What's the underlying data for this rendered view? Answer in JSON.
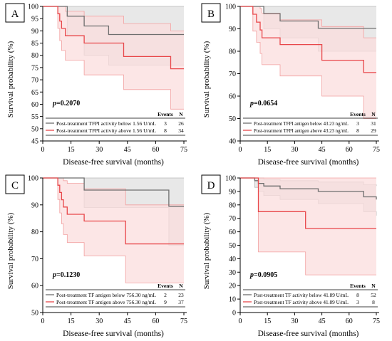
{
  "colors": {
    "grey_line": "#6e6e6e",
    "grey_band": "#e6e6e6",
    "red_line": "#e8474a",
    "red_band": "#fbdedd",
    "red_band_edge": "#f2a0a0",
    "grey_band_edge": "#b8b8b8"
  },
  "chart_data": [
    {
      "panel_letter": "A",
      "type": "line",
      "xlabel": "Disease-free survival (months)",
      "ylabel": "Survival probability (%)",
      "xlim": [
        0,
        75
      ],
      "ylim": [
        45,
        100
      ],
      "xticks": [
        0,
        15,
        30,
        45,
        60,
        75
      ],
      "yticks": [
        45,
        50,
        55,
        60,
        65,
        70,
        75,
        80,
        85,
        90,
        95,
        100
      ],
      "pvalue": "p=0.2070",
      "legend": {
        "headers": [
          "Events",
          "N"
        ],
        "rows": [
          {
            "label": "Post-treatment TFPI activity below 1.56 U/mL",
            "events": "3",
            "n": "26"
          },
          {
            "label": "Post-treatment TFPI activity above 1.56 U/mL",
            "events": "8",
            "n": "34"
          }
        ]
      },
      "series": [
        {
          "color_key": "grey",
          "x": [
            0,
            13,
            22,
            35,
            75
          ],
          "y": [
            100,
            96,
            92,
            88.5,
            88.5
          ],
          "ci_low": [
            100,
            88,
            80,
            76,
            76
          ],
          "ci_high": [
            100,
            100,
            100,
            100,
            100
          ]
        },
        {
          "color_key": "red",
          "x": [
            0,
            8,
            9,
            10,
            12,
            22,
            43,
            68,
            75
          ],
          "y": [
            100,
            97,
            94,
            91,
            88,
            85,
            79.5,
            74.5,
            74.5
          ],
          "ci_low": [
            100,
            91,
            86,
            82,
            78,
            72,
            66,
            58,
            58
          ],
          "ci_high": [
            100,
            100,
            100,
            100,
            98,
            96,
            93,
            90,
            90
          ]
        }
      ]
    },
    {
      "panel_letter": "B",
      "type": "line",
      "xlabel": "Disease-free survival (months)",
      "ylabel": "Survival probability (%)",
      "xlim": [
        0,
        75
      ],
      "ylim": [
        40,
        100
      ],
      "xticks": [
        0,
        15,
        30,
        45,
        60,
        75
      ],
      "yticks": [
        40,
        50,
        60,
        70,
        80,
        90,
        100
      ],
      "pvalue": "p=0.0654",
      "legend": {
        "headers": [
          "Events",
          "N"
        ],
        "rows": [
          {
            "label": "Post-treatment TFPI antigen below 43.23 ng/mL",
            "events": "3",
            "n": "31"
          },
          {
            "label": "Post-treatment TFPI antigen above 43.23 ng/mL",
            "events": "8",
            "n": "29"
          }
        ]
      },
      "series": [
        {
          "color_key": "grey",
          "x": [
            0,
            13,
            22,
            43,
            75
          ],
          "y": [
            100,
            96.8,
            93.5,
            90.3,
            90.3
          ],
          "ci_low": [
            100,
            90,
            86,
            80,
            80
          ],
          "ci_high": [
            100,
            100,
            100,
            100,
            100
          ]
        },
        {
          "color_key": "red",
          "x": [
            0,
            7,
            9,
            11,
            12,
            22,
            45,
            68,
            75
          ],
          "y": [
            100,
            96.5,
            93,
            89.5,
            86,
            83,
            76,
            70.5,
            70.5
          ],
          "ci_low": [
            100,
            89,
            84,
            79,
            74,
            69,
            60,
            50,
            50
          ],
          "ci_high": [
            100,
            100,
            100,
            99,
            97,
            94,
            91,
            86,
            86
          ]
        }
      ]
    },
    {
      "panel_letter": "C",
      "type": "line",
      "xlabel": "Disease-free survival (months)",
      "ylabel": "Survival probability (%)",
      "xlim": [
        0,
        75
      ],
      "ylim": [
        50,
        100
      ],
      "xticks": [
        0,
        15,
        30,
        45,
        60,
        75
      ],
      "yticks": [
        50,
        60,
        70,
        80,
        90,
        100
      ],
      "pvalue": "p=0.1230",
      "legend": {
        "headers": [
          "Events",
          "N"
        ],
        "rows": [
          {
            "label": "Post-treatment TF antigen below 756.30 ng/mL",
            "events": "2",
            "n": "23"
          },
          {
            "label": "Post-treatment TF antigen above 756.30 ng/mL",
            "events": "9",
            "n": "37"
          }
        ]
      },
      "series": [
        {
          "color_key": "grey",
          "x": [
            0,
            22,
            67,
            75
          ],
          "y": [
            100,
            95.5,
            89.5,
            89.5
          ],
          "ci_low": [
            100,
            89,
            75,
            75
          ],
          "ci_high": [
            100,
            100,
            100,
            100
          ]
        },
        {
          "color_key": "red",
          "x": [
            0,
            8,
            9,
            10,
            11,
            13,
            22,
            44,
            75
          ],
          "y": [
            100,
            97.3,
            94.6,
            91.9,
            89.2,
            86.5,
            84,
            75.5,
            75.5
          ],
          "ci_low": [
            100,
            92,
            87,
            83,
            79,
            76,
            71,
            61,
            61
          ],
          "ci_high": [
            100,
            100,
            100,
            100,
            99,
            98,
            96,
            90,
            90
          ]
        }
      ]
    },
    {
      "panel_letter": "D",
      "type": "line",
      "xlabel": "Disease-free survival (months)",
      "ylabel": "Survival probability (%)",
      "xlim": [
        0,
        75
      ],
      "ylim": [
        0,
        100
      ],
      "xticks": [
        0,
        15,
        30,
        45,
        60,
        75
      ],
      "yticks": [
        0,
        10,
        20,
        30,
        40,
        50,
        60,
        70,
        80,
        90,
        100
      ],
      "pvalue": "p=0.0905",
      "legend": {
        "headers": [
          "Events",
          "N"
        ],
        "rows": [
          {
            "label": "Post-treatment TF activity below 41.89 U/mL",
            "events": "8",
            "n": "52"
          },
          {
            "label": "Post-treatment TF activity above 41.89 U/mL",
            "events": "3",
            "n": "8"
          }
        ]
      },
      "series": [
        {
          "color_key": "grey",
          "x": [
            0,
            8,
            10,
            13,
            22,
            43,
            68,
            75
          ],
          "y": [
            100,
            98,
            96,
            94,
            92,
            90,
            86,
            84
          ],
          "ci_low": [
            100,
            93,
            90,
            87,
            84,
            81,
            75,
            72
          ],
          "ci_high": [
            100,
            100,
            100,
            99,
            98,
            97,
            95,
            94
          ]
        },
        {
          "color_key": "red",
          "x": [
            0,
            10,
            36,
            75
          ],
          "y": [
            100,
            75,
            62.5,
            62.5
          ],
          "ci_low": [
            100,
            45,
            28,
            28
          ],
          "ci_high": [
            100,
            100,
            100,
            100
          ]
        }
      ]
    }
  ]
}
